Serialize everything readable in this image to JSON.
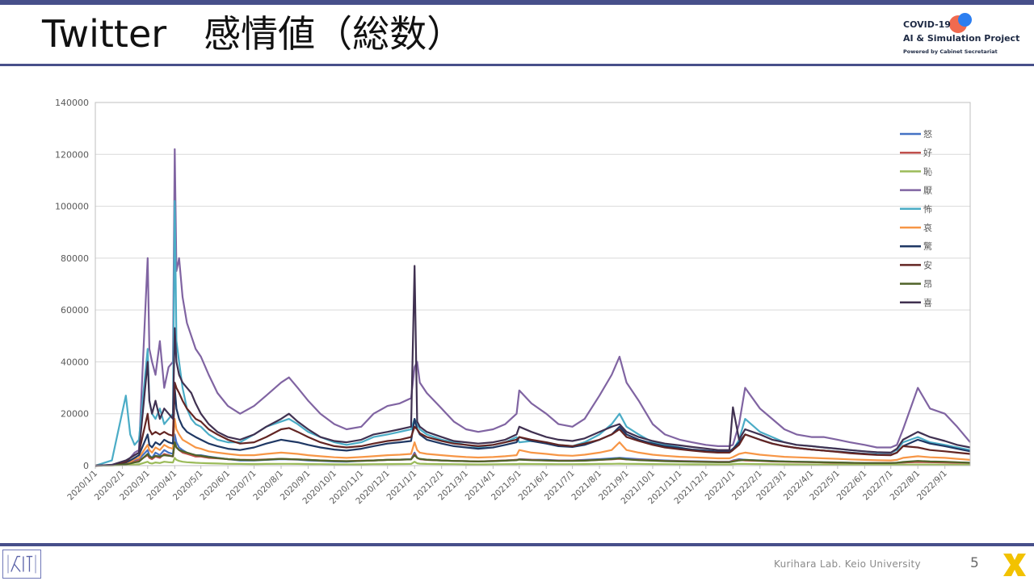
{
  "slide": {
    "title": "Twitter　感情値（総数）",
    "page_number": "5",
    "footer": "Kurihara Lab. Keio University",
    "logo": {
      "line1": "COVID-19",
      "line2": "AI & Simulation Project",
      "line3": "Powered by Cabinet Secretariat"
    }
  },
  "colors": {
    "accent": "#474f8a",
    "logo_red": "#f06a4f",
    "logo_blue": "#2c7ef0",
    "corner_yellow": "#f2c200"
  },
  "chart_data": {
    "type": "line",
    "title": "",
    "xlabel": "",
    "ylabel": "",
    "ylim": [
      0,
      140000
    ],
    "yticks": [
      0,
      20000,
      40000,
      60000,
      80000,
      100000,
      120000,
      140000
    ],
    "xlim": [
      "2020-01-01",
      "2022-09-30"
    ],
    "xtick_labels": [
      "2020/1/1",
      "2020/2/1",
      "2020/3/1",
      "2020/4/1",
      "2020/5/1",
      "2020/6/1",
      "2020/7/1",
      "2020/8/1",
      "2020/9/1",
      "2020/10/1",
      "2020/11/1",
      "2020/12/1",
      "2021/1/1",
      "2021/2/1",
      "2021/3/1",
      "2021/4/1",
      "2021/5/1",
      "2021/6/1",
      "2021/7/1",
      "2021/8/1",
      "2021/9/1",
      "2021/10/1",
      "2021/11/1",
      "2021/12/1",
      "2022/1/1",
      "2022/2/1",
      "2022/3/1",
      "2022/4/1",
      "2022/5/1",
      "2022/6/1",
      "2022/7/1",
      "2022/8/1",
      "2022/9/1"
    ],
    "grid": true,
    "legend_position": "right",
    "x": [
      "2020-01-01",
      "2020-01-20",
      "2020-02-05",
      "2020-02-10",
      "2020-02-15",
      "2020-02-20",
      "2020-03-01",
      "2020-03-03",
      "2020-03-06",
      "2020-03-10",
      "2020-03-15",
      "2020-03-20",
      "2020-03-25",
      "2020-03-30",
      "2020-04-01",
      "2020-04-03",
      "2020-04-06",
      "2020-04-10",
      "2020-04-15",
      "2020-04-20",
      "2020-04-25",
      "2020-05-01",
      "2020-05-10",
      "2020-05-20",
      "2020-06-01",
      "2020-06-15",
      "2020-07-01",
      "2020-07-15",
      "2020-08-01",
      "2020-08-10",
      "2020-08-20",
      "2020-09-01",
      "2020-09-15",
      "2020-10-01",
      "2020-10-15",
      "2020-11-01",
      "2020-11-15",
      "2020-12-01",
      "2020-12-15",
      "2020-12-28",
      "2021-01-01",
      "2021-01-04",
      "2021-01-07",
      "2021-01-15",
      "2021-02-01",
      "2021-02-15",
      "2021-03-01",
      "2021-03-15",
      "2021-04-01",
      "2021-04-15",
      "2021-04-28",
      "2021-05-01",
      "2021-05-15",
      "2021-06-01",
      "2021-06-15",
      "2021-07-01",
      "2021-07-15",
      "2021-08-01",
      "2021-08-15",
      "2021-08-24",
      "2021-09-01",
      "2021-09-15",
      "2021-10-01",
      "2021-10-15",
      "2021-11-01",
      "2021-11-15",
      "2021-12-01",
      "2021-12-15",
      "2021-12-28",
      "2022-01-01",
      "2022-01-08",
      "2022-01-15",
      "2022-02-01",
      "2022-02-15",
      "2022-03-01",
      "2022-03-15",
      "2022-04-01",
      "2022-04-15",
      "2022-05-01",
      "2022-05-15",
      "2022-06-01",
      "2022-06-15",
      "2022-07-01",
      "2022-07-08",
      "2022-07-15",
      "2022-08-01",
      "2022-08-15",
      "2022-09-01",
      "2022-09-15",
      "2022-09-30"
    ],
    "series": [
      {
        "name": "怒",
        "color": "#4472c4",
        "values": [
          0,
          100,
          800,
          1500,
          2000,
          2500,
          6000,
          4000,
          3000,
          5000,
          4000,
          6000,
          5000,
          4500,
          12000,
          9000,
          7000,
          6000,
          5000,
          4500,
          4000,
          4000,
          3500,
          3000,
          2500,
          2000,
          2000,
          2200,
          2500,
          2400,
          2300,
          2000,
          1800,
          1600,
          1500,
          1800,
          2000,
          2200,
          2300,
          2500,
          5000,
          3000,
          2500,
          2200,
          2000,
          1800,
          1700,
          1600,
          1800,
          2000,
          2200,
          2500,
          2300,
          2200,
          2000,
          2000,
          2200,
          2500,
          2800,
          3000,
          2800,
          2500,
          2200,
          2000,
          1800,
          1700,
          1600,
          1500,
          1500,
          2000,
          2500,
          2200,
          2000,
          1800,
          1600,
          1500,
          1400,
          1300,
          1200,
          1100,
          1000,
          1000,
          1000,
          1100,
          1200,
          1500,
          1400,
          1300,
          1200,
          1100
        ]
      },
      {
        "name": "好",
        "color": "#c0504d",
        "values": [
          0,
          100,
          600,
          1000,
          1500,
          2000,
          4000,
          3000,
          2500,
          3500,
          3000,
          4500,
          4000,
          3500,
          9000,
          7000,
          6000,
          5000,
          4500,
          4000,
          3500,
          3500,
          3000,
          2800,
          2500,
          2200,
          2200,
          2400,
          2600,
          2500,
          2400,
          2200,
          2000,
          1800,
          1700,
          1900,
          2000,
          2200,
          2300,
          2400,
          4500,
          3000,
          2500,
          2200,
          2000,
          1800,
          1700,
          1600,
          1800,
          2000,
          2200,
          2400,
          2200,
          2000,
          1900,
          1900,
          2000,
          2200,
          2400,
          2600,
          2400,
          2200,
          2000,
          1800,
          1700,
          1600,
          1500,
          1400,
          1400,
          1800,
          2200,
          2000,
          1800,
          1600,
          1500,
          1400,
          1300,
          1200,
          1100,
          1000,
          1000,
          1000,
          1000,
          1100,
          1200,
          1400,
          1300,
          1200,
          1100,
          1000
        ]
      },
      {
        "name": "恥",
        "color": "#9bbb59",
        "values": [
          0,
          50,
          200,
          300,
          400,
          500,
          1500,
          1000,
          800,
          1200,
          1000,
          1500,
          1300,
          1200,
          3000,
          2200,
          1800,
          1500,
          1300,
          1200,
          1100,
          1000,
          900,
          800,
          700,
          650,
          600,
          650,
          700,
          680,
          650,
          600,
          550,
          500,
          480,
          500,
          550,
          600,
          620,
          650,
          1500,
          900,
          750,
          650,
          600,
          550,
          500,
          480,
          520,
          560,
          600,
          650,
          620,
          580,
          550,
          550,
          600,
          650,
          700,
          750,
          700,
          650,
          600,
          550,
          520,
          500,
          480,
          450,
          450,
          600,
          700,
          650,
          600,
          550,
          500,
          480,
          450,
          420,
          400,
          380,
          350,
          350,
          350,
          380,
          400,
          450,
          420,
          400,
          380,
          350
        ]
      },
      {
        "name": "厭",
        "color": "#8064a2",
        "values": [
          0,
          200,
          1500,
          3000,
          5000,
          6000,
          80000,
          45000,
          40000,
          35000,
          48000,
          30000,
          38000,
          40000,
          122000,
          75000,
          80000,
          65000,
          55000,
          50000,
          45000,
          42000,
          35000,
          28000,
          23000,
          20000,
          23000,
          27000,
          32000,
          34000,
          30000,
          25000,
          20000,
          16000,
          14000,
          15000,
          20000,
          23000,
          24000,
          26000,
          38000,
          40000,
          32000,
          28000,
          22000,
          17000,
          14000,
          13000,
          14000,
          16000,
          20000,
          29000,
          24000,
          20000,
          16000,
          15000,
          18000,
          27000,
          35000,
          42000,
          32000,
          25000,
          16000,
          12000,
          10000,
          9000,
          8000,
          7500,
          7500,
          8000,
          16000,
          30000,
          22000,
          18000,
          14000,
          12000,
          11000,
          11000,
          10000,
          9000,
          8000,
          7000,
          7000,
          8000,
          14000,
          30000,
          22000,
          20000,
          15000,
          9000
        ]
      },
      {
        "name": "怖",
        "color": "#4bacc6",
        "values": [
          0,
          2000,
          27000,
          12000,
          8000,
          10000,
          45000,
          25000,
          20000,
          18000,
          22000,
          16000,
          18000,
          20000,
          102000,
          48000,
          40000,
          30000,
          22000,
          18000,
          16000,
          15000,
          12000,
          10000,
          9000,
          9000,
          12000,
          15000,
          17000,
          18000,
          16000,
          13000,
          11000,
          9000,
          8000,
          9000,
          11000,
          12000,
          13000,
          14000,
          18000,
          16000,
          14000,
          12000,
          10000,
          9000,
          8000,
          7000,
          8000,
          9000,
          11000,
          9000,
          9500,
          9000,
          8000,
          7500,
          9000,
          12000,
          16000,
          20000,
          15000,
          12000,
          9000,
          8000,
          7000,
          6000,
          5500,
          5000,
          5000,
          6000,
          10000,
          18000,
          13000,
          11000,
          9000,
          8000,
          7500,
          7000,
          6500,
          6000,
          5500,
          5000,
          5000,
          6000,
          9000,
          11000,
          9000,
          8000,
          7000,
          6000
        ]
      },
      {
        "name": "哀",
        "color": "#f79646",
        "values": [
          0,
          100,
          1000,
          1500,
          2500,
          3000,
          8000,
          6000,
          5000,
          7000,
          6000,
          8000,
          7000,
          6500,
          18000,
          14000,
          12000,
          10000,
          9000,
          8000,
          7000,
          6500,
          5500,
          5000,
          4500,
          4000,
          4000,
          4500,
          5000,
          4800,
          4500,
          4000,
          3600,
          3200,
          3000,
          3300,
          3600,
          4000,
          4200,
          4500,
          9000,
          6000,
          5000,
          4500,
          4000,
          3600,
          3300,
          3100,
          3300,
          3600,
          4000,
          6000,
          5000,
          4500,
          4000,
          3800,
          4200,
          5000,
          6000,
          9000,
          6000,
          5000,
          4200,
          3800,
          3400,
          3200,
          3000,
          2800,
          2800,
          3300,
          4500,
          5000,
          4200,
          3800,
          3400,
          3200,
          3000,
          2800,
          2600,
          2400,
          2200,
          2100,
          2000,
          2200,
          3000,
          3600,
          3200,
          3000,
          2600,
          2200
        ]
      },
      {
        "name": "驚",
        "color": "#1f3864",
        "values": [
          0,
          200,
          1200,
          2000,
          3000,
          4000,
          12000,
          8000,
          7000,
          9000,
          8000,
          10000,
          9000,
          8500,
          30000,
          22000,
          18000,
          15000,
          13000,
          12000,
          11000,
          10000,
          8500,
          7500,
          6500,
          6000,
          7000,
          8500,
          10000,
          9500,
          9000,
          8000,
          7000,
          6200,
          5800,
          6500,
          7500,
          8500,
          9000,
          9500,
          18000,
          14000,
          12000,
          10000,
          8500,
          7500,
          7000,
          6500,
          7000,
          8000,
          9000,
          11000,
          9500,
          8500,
          7500,
          7200,
          8000,
          10000,
          12000,
          15000,
          12000,
          10000,
          8500,
          7500,
          6800,
          6200,
          5800,
          5400,
          5400,
          6500,
          9000,
          12000,
          10000,
          8500,
          7500,
          6800,
          6200,
          5800,
          5400,
          5000,
          4600,
          4300,
          4200,
          5000,
          7500,
          10000,
          8500,
          7500,
          6500,
          5500
        ]
      },
      {
        "name": "安",
        "color": "#632523",
        "values": [
          0,
          200,
          1500,
          3000,
          4000,
          5000,
          20000,
          14000,
          12000,
          13000,
          12000,
          13000,
          12000,
          11500,
          32000,
          30000,
          28000,
          25000,
          22000,
          20000,
          18000,
          17000,
          14000,
          12000,
          10000,
          8500,
          9000,
          11000,
          14000,
          14500,
          13000,
          11000,
          9000,
          7500,
          7000,
          7500,
          8500,
          9500,
          10000,
          11000,
          15000,
          14000,
          12500,
          11000,
          9500,
          8500,
          8000,
          7500,
          8000,
          9000,
          10000,
          11000,
          10000,
          9000,
          8000,
          7500,
          8500,
          10000,
          12000,
          14000,
          11000,
          9500,
          8000,
          7000,
          6300,
          5800,
          5300,
          5000,
          5000,
          6000,
          8000,
          12000,
          10000,
          8500,
          7500,
          6800,
          6200,
          5800,
          5300,
          4800,
          4400,
          4100,
          4000,
          5000,
          7500,
          7000,
          6000,
          5500,
          5000,
          4500
        ]
      },
      {
        "name": "昂",
        "color": "#4f6228",
        "values": [
          0,
          100,
          500,
          800,
          1200,
          1500,
          4500,
          3500,
          3000,
          3800,
          3500,
          4000,
          3800,
          3600,
          9000,
          7000,
          6000,
          5500,
          5000,
          4500,
          4000,
          3800,
          3300,
          2900,
          2500,
          2200,
          2100,
          2300,
          2600,
          2500,
          2400,
          2200,
          2000,
          1800,
          1700,
          1800,
          2000,
          2200,
          2300,
          2400,
          4000,
          3000,
          2600,
          2300,
          2000,
          1800,
          1700,
          1600,
          1700,
          1900,
          2100,
          2300,
          2100,
          2000,
          1800,
          1800,
          1900,
          2200,
          2500,
          2800,
          2400,
          2100,
          1900,
          1700,
          1600,
          1500,
          1400,
          1300,
          1300,
          1600,
          2000,
          2200,
          1900,
          1700,
          1600,
          1500,
          1400,
          1300,
          1200,
          1100,
          1000,
          1000,
          1000,
          1100,
          1400,
          1800,
          1600,
          1500,
          1300,
          1100
        ]
      },
      {
        "name": "喜",
        "color": "#403151",
        "values": [
          0,
          300,
          2000,
          3000,
          4000,
          5000,
          40000,
          25000,
          20000,
          25000,
          18000,
          22000,
          20000,
          18000,
          53000,
          40000,
          35000,
          32000,
          30000,
          28000,
          24000,
          20000,
          16000,
          13000,
          11000,
          10000,
          12000,
          15000,
          18000,
          20000,
          17000,
          14000,
          11000,
          9500,
          9000,
          10000,
          12000,
          13000,
          14000,
          15000,
          77000,
          17000,
          15000,
          13000,
          11000,
          9500,
          9000,
          8500,
          9000,
          10000,
          12000,
          15000,
          13000,
          11000,
          10000,
          9500,
          10500,
          13000,
          15000,
          16000,
          13000,
          11000,
          9500,
          8500,
          7800,
          7200,
          6600,
          6000,
          6000,
          22500,
          10000,
          14000,
          12000,
          10000,
          9000,
          8000,
          7500,
          7000,
          6500,
          6000,
          5500,
          5200,
          5000,
          6500,
          10000,
          13000,
          11000,
          9500,
          8000,
          7000
        ]
      }
    ]
  }
}
